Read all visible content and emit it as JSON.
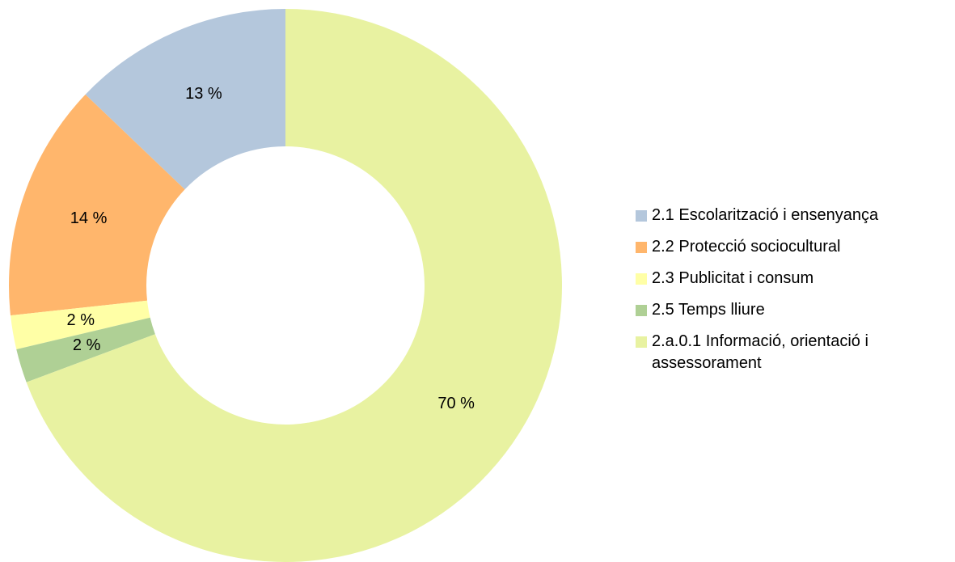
{
  "chart_data": {
    "type": "donut",
    "categories": [
      "2.1 Escolarització i ensenyança",
      "2.2 Protecció sociocultural",
      "2.3 Publicitat i consum",
      "2.5 Temps lliure",
      "2.a.0.1 Informació, orientació i assessorament"
    ],
    "values": [
      13,
      14,
      2,
      2,
      70
    ],
    "value_labels": [
      "13 %",
      "14 %",
      "2 %",
      "2 %",
      "70 %"
    ],
    "colors": [
      "#b4c7dc",
      "#ffb66c",
      "#ffffa6",
      "#afd095",
      "#e8f2a1"
    ],
    "legend": "right"
  }
}
